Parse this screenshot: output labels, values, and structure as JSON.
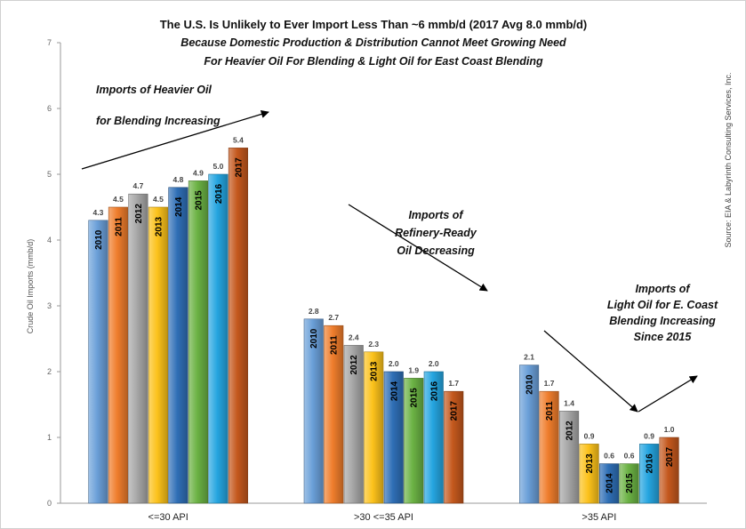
{
  "chart_data": {
    "type": "bar",
    "title": "The U.S. Is Unlikely to Ever Import Less Than ~6 mmb/d (2017 Avg 8.0 mmb/d)",
    "subtitle_lines": [
      "Because Domestic Production & Distribution Cannot Meet Growing Need",
      "For Heavier Oil For Blending & Light Oil for East Coast Blending"
    ],
    "ylabel": "Crude Oil Imports (mmb/d)",
    "ylim": [
      0,
      7
    ],
    "yticks": [
      0,
      1,
      2,
      3,
      4,
      5,
      6,
      7
    ],
    "grid": false,
    "categories": [
      "<=30 API",
      ">30 <=35 API",
      ">35 API"
    ],
    "series": [
      {
        "name": "2010",
        "color": "#6a9fd8",
        "values": [
          4.3,
          2.8,
          2.1
        ],
        "labels": [
          "4.3",
          "2.8",
          "2.1"
        ]
      },
      {
        "name": "2011",
        "color": "#ef7d2c",
        "values": [
          4.5,
          2.7,
          1.7
        ],
        "labels": [
          "4.5",
          "2.7",
          "1.7"
        ]
      },
      {
        "name": "2012",
        "color": "#a6a6a6",
        "values": [
          4.7,
          2.4,
          1.4
        ],
        "labels": [
          "4.7",
          "2.4",
          "1.4"
        ]
      },
      {
        "name": "2013",
        "color": "#fcc21b",
        "values": [
          4.5,
          2.3,
          0.9
        ],
        "labels": [
          "4.5",
          "2.3",
          "0.9"
        ]
      },
      {
        "name": "2014",
        "color": "#2f6fb6",
        "values": [
          4.8,
          2.0,
          0.6
        ],
        "labels": [
          "4.8",
          "2.0",
          "0.6"
        ]
      },
      {
        "name": "2015",
        "color": "#6bb244",
        "values": [
          4.9,
          1.9,
          0.6
        ],
        "labels": [
          "4.9",
          "1.9",
          "0.6"
        ]
      },
      {
        "name": "2016",
        "color": "#25a5e0",
        "values": [
          5.0,
          2.0,
          0.9
        ],
        "labels": [
          "5.0",
          "2.0",
          "0.9"
        ]
      },
      {
        "name": "2017",
        "color": "#c4581d",
        "values": [
          5.4,
          1.7,
          1.0
        ],
        "labels": [
          "5.4",
          "1.7",
          "1.0"
        ]
      }
    ],
    "annotations": [
      {
        "lines": [
          "Imports of Heavier Oil",
          "for Blending Increasing"
        ]
      },
      {
        "lines": [
          "Imports of",
          "Refinery-Ready",
          "Oil Decreasing"
        ]
      },
      {
        "lines": [
          "Imports of",
          "Light Oil for E. Coast",
          "Blending Increasing",
          "Since 2015"
        ]
      }
    ],
    "source": "Source: EIA & Labyrinth Consulting Services, Inc."
  }
}
